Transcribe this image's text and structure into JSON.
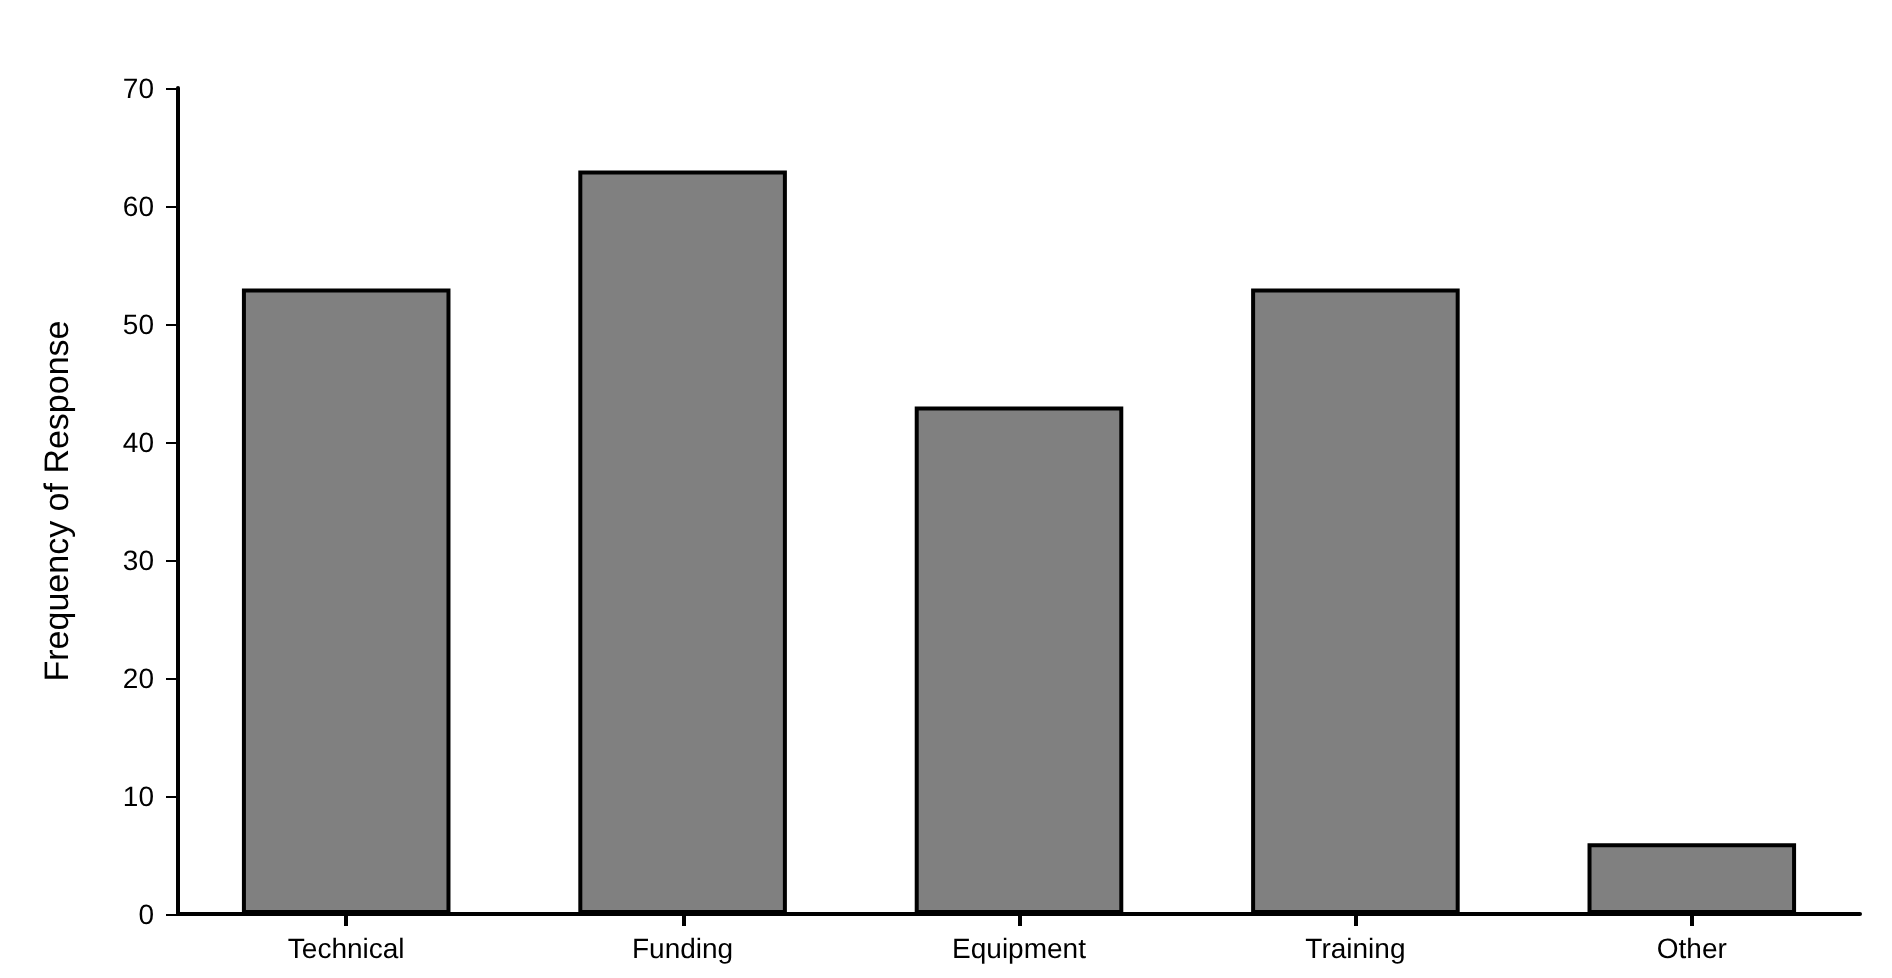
{
  "chart_data": {
    "type": "bar",
    "ylabel": "Frequency of Response",
    "categories": [
      "Technical",
      "Funding",
      "Equipment",
      "Training",
      "Other"
    ],
    "values": [
      53,
      63,
      43,
      53,
      6
    ],
    "color": "#808080",
    "ylim": [
      0,
      70
    ],
    "yticks": [
      0,
      10,
      20,
      30,
      40,
      50,
      60,
      70
    ],
    "grid": false
  }
}
